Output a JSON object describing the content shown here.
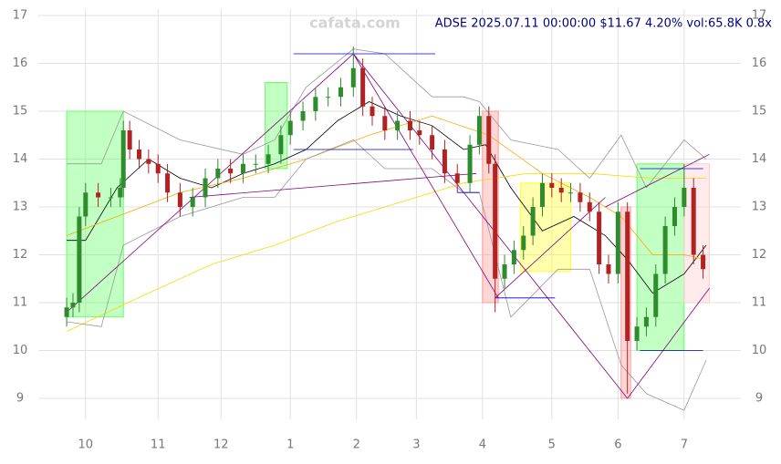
{
  "chart_data": {
    "type": "candlestick",
    "title": "ADSE 2025.07.11 00:00:00 $11.67 4.20% vol:65.8K 0.8x",
    "watermark": "cafata.com",
    "xlim": [
      -15,
      208
    ],
    "xticks": [
      {
        "value": 0,
        "label": "10"
      },
      {
        "value": 23,
        "label": "11"
      },
      {
        "value": 43,
        "label": "12"
      },
      {
        "value": 65,
        "label": "1"
      },
      {
        "value": 86,
        "label": "2"
      },
      {
        "value": 105,
        "label": "3"
      },
      {
        "value": 126,
        "label": "4"
      },
      {
        "value": 148,
        "label": "5"
      },
      {
        "value": 169,
        "label": "6"
      },
      {
        "value": 190,
        "label": "7"
      }
    ],
    "ylim": [
      8.75,
      17.2
    ],
    "yticks": [
      9,
      10,
      11,
      12,
      13,
      14,
      15,
      16,
      17
    ],
    "grid": true,
    "up_color": "#2e8b2e",
    "down_color": "#b22222",
    "x": [
      -6,
      -4,
      -2,
      0,
      4,
      8,
      11,
      12,
      14,
      17,
      20,
      23,
      26,
      30,
      34,
      38,
      42,
      46,
      50,
      54,
      58,
      62,
      65,
      69,
      73,
      77,
      81,
      85,
      88,
      91,
      95,
      99,
      103,
      106,
      110,
      114,
      118,
      122,
      125,
      128,
      130,
      133,
      136,
      139,
      142,
      145,
      148,
      151,
      154,
      157,
      160,
      163,
      166,
      169,
      172,
      175,
      178,
      181,
      184,
      187,
      190,
      193,
      196
    ],
    "open": [
      10.7,
      10.9,
      11.0,
      12.8,
      13.3,
      13.2,
      13.2,
      13.4,
      14.6,
      14.2,
      14.0,
      13.9,
      13.7,
      13.3,
      13.0,
      13.2,
      13.6,
      13.8,
      13.7,
      13.9,
      13.9,
      14.1,
      14.5,
      14.8,
      15.0,
      15.3,
      15.3,
      15.5,
      15.9,
      15.1,
      14.9,
      14.6,
      14.8,
      14.6,
      14.5,
      14.2,
      13.7,
      13.5,
      14.3,
      14.9,
      13.9,
      11.5,
      11.8,
      12.1,
      12.4,
      13.0,
      13.5,
      13.4,
      13.3,
      13.3,
      13.1,
      12.9,
      11.8,
      11.6,
      12.9,
      10.2,
      10.5,
      10.7,
      11.6,
      12.6,
      13.0,
      13.4,
      12.0
    ],
    "high": [
      11.1,
      11.2,
      13.0,
      13.5,
      13.5,
      13.4,
      13.6,
      14.8,
      14.8,
      14.4,
      14.2,
      14.1,
      13.9,
      13.5,
      13.4,
      13.8,
      14.0,
      14.0,
      14.1,
      14.1,
      14.3,
      14.7,
      15.0,
      15.2,
      15.5,
      15.5,
      15.7,
      16.35,
      16.1,
      15.3,
      15.1,
      15.0,
      15.0,
      14.8,
      14.7,
      14.4,
      13.9,
      14.5,
      15.1,
      15.1,
      14.1,
      12.0,
      12.3,
      12.6,
      13.2,
      13.7,
      13.7,
      13.6,
      13.5,
      13.5,
      13.3,
      13.1,
      12.0,
      13.1,
      13.1,
      10.7,
      10.9,
      11.8,
      12.8,
      13.2,
      13.9,
      13.6,
      12.2
    ],
    "low": [
      10.5,
      10.7,
      10.8,
      12.6,
      13.0,
      13.0,
      13.0,
      13.2,
      14.0,
      13.8,
      13.7,
      13.5,
      13.1,
      12.8,
      12.8,
      13.0,
      13.4,
      13.5,
      13.5,
      13.7,
      13.7,
      13.9,
      14.3,
      14.6,
      14.8,
      15.1,
      15.1,
      15.3,
      14.9,
      14.7,
      14.4,
      14.4,
      14.4,
      14.3,
      14.0,
      13.5,
      13.3,
      13.3,
      14.1,
      13.7,
      10.8,
      11.3,
      11.6,
      11.9,
      12.2,
      12.8,
      13.2,
      13.1,
      13.1,
      12.9,
      12.7,
      11.6,
      11.4,
      11.4,
      9.1,
      10.0,
      10.3,
      10.5,
      11.4,
      12.4,
      12.8,
      11.8,
      11.5
    ],
    "close": [
      10.9,
      11.0,
      12.8,
      13.3,
      13.2,
      13.2,
      13.4,
      14.6,
      14.2,
      14.0,
      13.9,
      13.7,
      13.3,
      13.0,
      13.2,
      13.6,
      13.8,
      13.7,
      13.9,
      13.9,
      14.1,
      14.5,
      14.8,
      15.0,
      15.3,
      15.3,
      15.5,
      15.9,
      15.1,
      14.9,
      14.6,
      14.8,
      14.6,
      14.5,
      14.2,
      13.7,
      13.5,
      14.3,
      14.9,
      13.9,
      11.5,
      11.8,
      12.1,
      12.4,
      13.0,
      13.5,
      13.4,
      13.3,
      13.3,
      13.1,
      12.9,
      11.8,
      11.6,
      12.9,
      10.2,
      10.5,
      10.7,
      11.6,
      12.6,
      13.0,
      13.4,
      12.0,
      11.7
    ],
    "boxes": [
      {
        "color": "#66ff66",
        "x": [
          -6,
          12
        ],
        "y": [
          10.7,
          15.0
        ]
      },
      {
        "color": "#66ff66",
        "x": [
          57,
          64
        ],
        "y": [
          13.8,
          15.6
        ]
      },
      {
        "color": "#66ff66",
        "x": [
          175,
          190
        ],
        "y": [
          10.0,
          13.9
        ]
      },
      {
        "color": "#ff9999",
        "x": [
          126,
          131
        ],
        "y": [
          11.0,
          15.0
        ]
      },
      {
        "color": "#ff9999",
        "x": [
          170,
          173
        ],
        "y": [
          9.0,
          13.0
        ]
      },
      {
        "color": "#ffcccc",
        "x": [
          190,
          198
        ],
        "y": [
          11.0,
          13.9
        ]
      },
      {
        "color": "#ffff33",
        "x": [
          138,
          154
        ],
        "y": [
          11.65,
          13.5
        ]
      }
    ],
    "segments": [
      {
        "color": "#800080",
        "x": [
          -6,
          85
        ],
        "y": [
          10.8,
          16.2
        ]
      },
      {
        "color": "#800080",
        "x": [
          85,
          131
        ],
        "y": [
          16.2,
          11.1
        ]
      },
      {
        "color": "#800080",
        "x": [
          85,
          172
        ],
        "y": [
          16.2,
          9.0
        ]
      },
      {
        "color": "#800080",
        "x": [
          33,
          124
        ],
        "y": [
          13.2,
          13.7
        ]
      },
      {
        "color": "#800080",
        "x": [
          130,
          165
        ],
        "y": [
          11.1,
          13.2
        ]
      },
      {
        "color": "#800080",
        "x": [
          172,
          198
        ],
        "y": [
          9.0,
          11.3
        ]
      },
      {
        "color": "#800080",
        "x": [
          165,
          198
        ],
        "y": [
          13.0,
          14.1
        ]
      },
      {
        "color": "#0000cc",
        "x": [
          66,
          111
        ],
        "y": [
          16.2,
          16.2
        ]
      },
      {
        "color": "#0000cc",
        "x": [
          66,
          104
        ],
        "y": [
          14.2,
          14.2
        ]
      },
      {
        "color": "#0000cc",
        "x": [
          118,
          125
        ],
        "y": [
          13.3,
          13.3
        ]
      },
      {
        "color": "#0000cc",
        "x": [
          130,
          149
        ],
        "y": [
          11.1,
          11.1
        ]
      },
      {
        "color": "#0000cc",
        "x": [
          176,
          196
        ],
        "y": [
          13.8,
          13.8
        ]
      },
      {
        "color": "#0000cc",
        "x": [
          176,
          196
        ],
        "y": [
          10.0,
          10.0
        ]
      }
    ],
    "lines": [
      {
        "color": "#000000",
        "x": [
          -6,
          0,
          10,
          20,
          30,
          40,
          50,
          60,
          70,
          80,
          90,
          100,
          110,
          120,
          127,
          135,
          145,
          155,
          165,
          172,
          180,
          190,
          197
        ],
        "y": [
          12.3,
          12.3,
          13.4,
          14.0,
          13.6,
          13.4,
          13.7,
          13.9,
          14.2,
          14.8,
          15.2,
          14.9,
          14.7,
          14.2,
          14.3,
          13.4,
          12.5,
          12.8,
          12.4,
          11.9,
          11.2,
          11.6,
          12.2
        ]
      },
      {
        "color": "#ffa500",
        "x": [
          -6,
          10,
          30,
          50,
          70,
          90,
          110,
          128,
          145,
          160,
          170,
          180,
          190,
          197
        ],
        "y": [
          12.4,
          12.8,
          13.3,
          13.6,
          14.0,
          14.5,
          14.9,
          14.5,
          13.7,
          13.2,
          12.8,
          12.0,
          12.0,
          11.9
        ]
      },
      {
        "color": "#ffd700",
        "x": [
          -6,
          20,
          40,
          60,
          80,
          100,
          120,
          140,
          160,
          180,
          197
        ],
        "y": [
          10.4,
          11.2,
          11.8,
          12.2,
          12.7,
          13.1,
          13.5,
          13.7,
          13.7,
          13.6,
          13.6
        ]
      },
      {
        "color": "#999999",
        "x": [
          -6,
          5,
          12,
          30,
          50,
          60,
          70,
          85,
          95,
          110,
          120,
          125,
          135,
          150,
          160,
          170,
          178,
          190,
          197
        ],
        "y": [
          13.9,
          13.9,
          15.0,
          14.4,
          14.1,
          14.4,
          15.5,
          16.3,
          16.2,
          15.3,
          15.3,
          15.2,
          14.4,
          14.2,
          13.6,
          14.5,
          13.4,
          14.4,
          14.0
        ]
      },
      {
        "color": "#999999",
        "x": [
          -6,
          5,
          12,
          30,
          50,
          60,
          70,
          85,
          95,
          110,
          120,
          125,
          135,
          150,
          160,
          170,
          178,
          190,
          197
        ],
        "y": [
          10.6,
          10.5,
          12.2,
          12.8,
          13.2,
          13.2,
          14.0,
          14.4,
          13.8,
          13.8,
          13.3,
          13.3,
          10.7,
          11.7,
          11.7,
          9.7,
          9.1,
          8.75,
          9.8
        ]
      }
    ]
  }
}
